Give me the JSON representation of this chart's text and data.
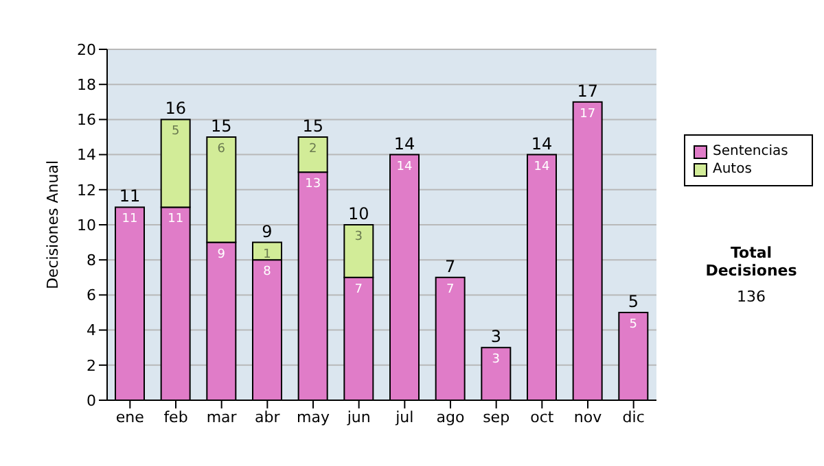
{
  "chart_data": {
    "type": "bar",
    "stacked": true,
    "ylabel": "Decisiones Anual",
    "categories": [
      "ene",
      "feb",
      "mar",
      "abr",
      "may",
      "jun",
      "jul",
      "ago",
      "sep",
      "oct",
      "nov",
      "dic"
    ],
    "series": [
      {
        "name": "Sentencias",
        "color": "#e07cc8",
        "values": [
          11,
          11,
          9,
          8,
          13,
          7,
          14,
          7,
          3,
          14,
          17,
          5
        ],
        "value_labels": [
          "11",
          "11",
          "9",
          "8",
          "13",
          "7",
          "14",
          "7",
          "3",
          "14",
          "17",
          "5"
        ]
      },
      {
        "name": "Autos",
        "color": "#d2ec98",
        "values": [
          0,
          5,
          6,
          1,
          2,
          3,
          0,
          0,
          0,
          0,
          0,
          0
        ],
        "value_labels": [
          null,
          "5",
          "6",
          "1",
          "2",
          "3",
          null,
          null,
          null,
          null,
          null,
          null
        ]
      }
    ],
    "totals": [
      "11",
      "16",
      "15",
      "9",
      "15",
      "10",
      "14",
      "7",
      "3",
      "14",
      "17",
      "5"
    ],
    "ylim": [
      0,
      20
    ],
    "yticks": [
      0,
      2,
      4,
      6,
      8,
      10,
      12,
      14,
      16,
      18,
      20
    ],
    "grid": "y",
    "legend": "right",
    "annotations": [
      "Total Decisiones",
      "136"
    ]
  }
}
